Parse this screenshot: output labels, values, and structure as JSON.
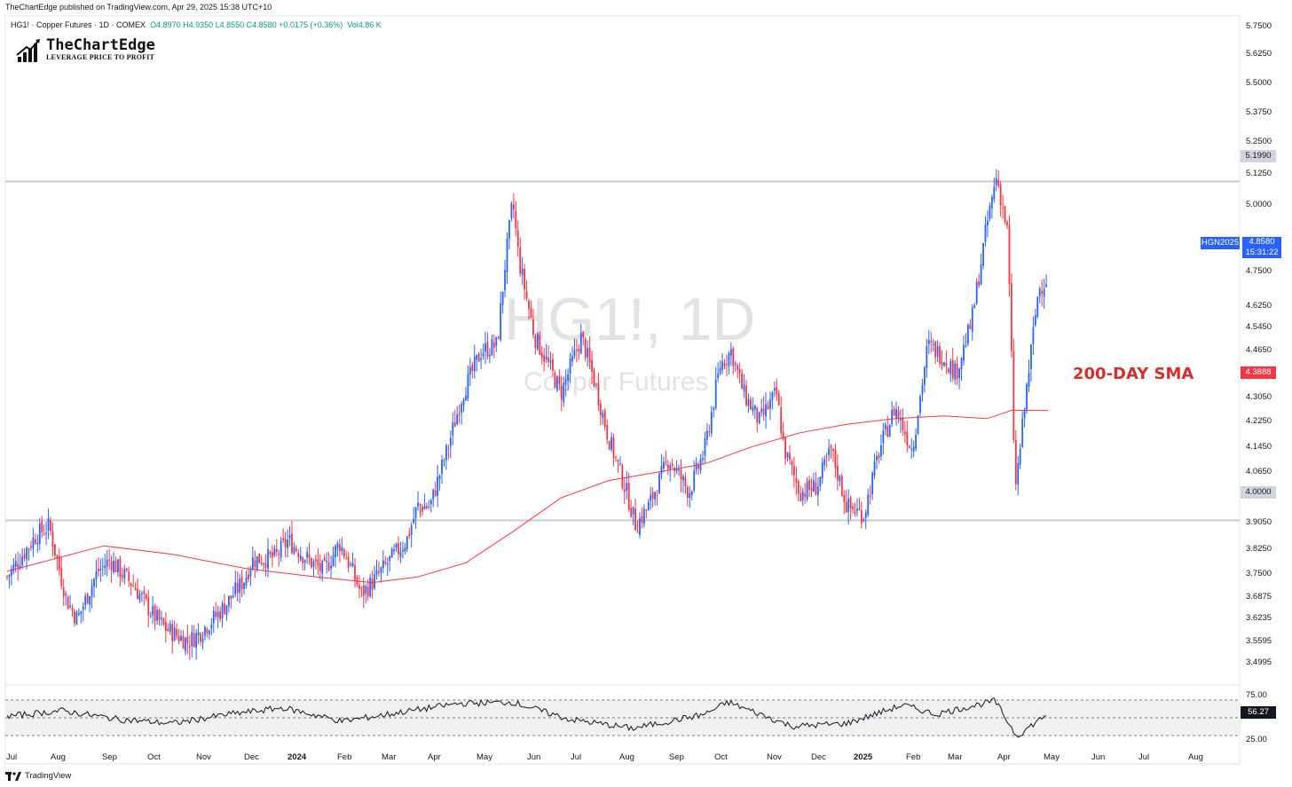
{
  "header": {
    "published": "TheChartEdge published on TradingView.com, Apr 29, 2025 15:38 UTC+10"
  },
  "legend": {
    "title": "HG1! · Copper Futures · 1D · COMEX",
    "ohlc": "O4.8970 H4.9350 L4.8550 C4.8580 +0.0175 (+0.36%)",
    "vol": "Vol4.86 K"
  },
  "brand": {
    "name": "TheChartEdge",
    "tagline": "LEVERAGE PRICE TO PROFIT"
  },
  "watermark": {
    "symbol": "HG1!, 1D",
    "name": "Copper Futures"
  },
  "annotation": {
    "sma_label": "200-DAY SMA"
  },
  "colors": {
    "up": "#2962ff",
    "down": "#f23645",
    "sma": "#f23645",
    "hline": "#c8cacf"
  },
  "y_axis_labels": [
    "5.7500",
    "5.6250",
    "5.5000",
    "5.3750",
    "5.2500",
    "5.1250",
    "5.0000",
    "4.7500",
    "4.6250",
    "4.5450",
    "4.4650",
    "4.3050",
    "4.2250",
    "4.1450",
    "4.0650",
    "3.9050",
    "3.8250",
    "3.7500",
    "3.6875",
    "3.6235",
    "3.5595",
    "3.4995"
  ],
  "price_tags": {
    "resistance": "5.1990",
    "support": "4.0000",
    "symbol": "HGN2025",
    "last": "4.8580",
    "countdown": "15:31:22",
    "sma": "4.3888"
  },
  "rsi": {
    "labels": [
      "75.00",
      "25.00"
    ],
    "value": "56.27"
  },
  "x_axis_labels": [
    {
      "t": "Jul",
      "bold": false
    },
    {
      "t": "Aug",
      "bold": false
    },
    {
      "t": "Sep",
      "bold": false
    },
    {
      "t": "Oct",
      "bold": false
    },
    {
      "t": "Nov",
      "bold": false
    },
    {
      "t": "Dec",
      "bold": false
    },
    {
      "t": "2024",
      "bold": true
    },
    {
      "t": "Feb",
      "bold": false
    },
    {
      "t": "Mar",
      "bold": false
    },
    {
      "t": "Apr",
      "bold": false
    },
    {
      "t": "May",
      "bold": false
    },
    {
      "t": "Jun",
      "bold": false
    },
    {
      "t": "Jul",
      "bold": false
    },
    {
      "t": "Aug",
      "bold": false
    },
    {
      "t": "Sep",
      "bold": false
    },
    {
      "t": "Oct",
      "bold": false
    },
    {
      "t": "Nov",
      "bold": false
    },
    {
      "t": "Dec",
      "bold": false
    },
    {
      "t": "2025",
      "bold": true
    },
    {
      "t": "Feb",
      "bold": false
    },
    {
      "t": "Mar",
      "bold": false
    },
    {
      "t": "Apr",
      "bold": false
    },
    {
      "t": "May",
      "bold": false
    },
    {
      "t": "Jun",
      "bold": false
    },
    {
      "t": "Jul",
      "bold": false
    },
    {
      "t": "Aug",
      "bold": false
    }
  ],
  "footer": {
    "brand": "TradingView"
  },
  "chart_data": {
    "type": "candlestick-line",
    "ylim": [
      3.45,
      5.78
    ],
    "horizontal_levels": [
      5.199,
      4.0
    ],
    "price_path": [
      [
        "2023-07-01",
        3.8
      ],
      [
        "2023-07-20",
        3.95
      ],
      [
        "2023-07-28",
        3.98
      ],
      [
        "2023-08-08",
        3.72
      ],
      [
        "2023-08-15",
        3.65
      ],
      [
        "2023-08-28",
        3.82
      ],
      [
        "2023-09-05",
        3.86
      ],
      [
        "2023-09-20",
        3.77
      ],
      [
        "2023-10-02",
        3.67
      ],
      [
        "2023-10-10",
        3.62
      ],
      [
        "2023-10-25",
        3.57
      ],
      [
        "2023-11-01",
        3.6
      ],
      [
        "2023-11-15",
        3.68
      ],
      [
        "2023-11-30",
        3.79
      ],
      [
        "2023-12-05",
        3.86
      ],
      [
        "2023-12-20",
        3.87
      ],
      [
        "2023-12-28",
        3.93
      ],
      [
        "2024-01-10",
        3.86
      ],
      [
        "2024-01-20",
        3.82
      ],
      [
        "2024-01-30",
        3.92
      ],
      [
        "2024-02-05",
        3.85
      ],
      [
        "2024-02-13",
        3.74
      ],
      [
        "2024-02-20",
        3.78
      ],
      [
        "2024-03-01",
        3.85
      ],
      [
        "2024-03-13",
        3.93
      ],
      [
        "2024-03-20",
        4.05
      ],
      [
        "2024-03-28",
        4.05
      ],
      [
        "2024-04-08",
        4.25
      ],
      [
        "2024-04-18",
        4.45
      ],
      [
        "2024-04-30",
        4.6
      ],
      [
        "2024-05-10",
        4.62
      ],
      [
        "2024-05-15",
        4.9
      ],
      [
        "2024-05-20",
        5.13
      ],
      [
        "2024-05-24",
        4.92
      ],
      [
        "2024-06-03",
        4.65
      ],
      [
        "2024-06-12",
        4.55
      ],
      [
        "2024-06-20",
        4.45
      ],
      [
        "2024-07-03",
        4.65
      ],
      [
        "2024-07-12",
        4.48
      ],
      [
        "2024-07-20",
        4.3
      ],
      [
        "2024-08-01",
        4.1
      ],
      [
        "2024-08-07",
        3.98
      ],
      [
        "2024-08-15",
        4.05
      ],
      [
        "2024-08-28",
        4.22
      ],
      [
        "2024-09-10",
        4.1
      ],
      [
        "2024-09-20",
        4.25
      ],
      [
        "2024-09-30",
        4.55
      ],
      [
        "2024-10-07",
        4.6
      ],
      [
        "2024-10-15",
        4.45
      ],
      [
        "2024-10-25",
        4.35
      ],
      [
        "2024-11-05",
        4.45
      ],
      [
        "2024-11-10",
        4.25
      ],
      [
        "2024-11-20",
        4.1
      ],
      [
        "2024-12-01",
        4.12
      ],
      [
        "2024-12-10",
        4.25
      ],
      [
        "2024-12-20",
        4.05
      ],
      [
        "2024-12-31",
        4.02
      ],
      [
        "2025-01-10",
        4.25
      ],
      [
        "2025-01-20",
        4.4
      ],
      [
        "2025-01-31",
        4.25
      ],
      [
        "2025-02-10",
        4.62
      ],
      [
        "2025-02-20",
        4.58
      ],
      [
        "2025-02-28",
        4.52
      ],
      [
        "2025-03-10",
        4.7
      ],
      [
        "2025-03-20",
        5.05
      ],
      [
        "2025-03-26",
        5.22
      ],
      [
        "2025-04-02",
        5.02
      ],
      [
        "2025-04-04",
        4.7
      ],
      [
        "2025-04-07",
        4.1
      ],
      [
        "2025-04-09",
        4.2
      ],
      [
        "2025-04-15",
        4.5
      ],
      [
        "2025-04-22",
        4.82
      ],
      [
        "2025-04-28",
        4.858
      ]
    ],
    "sma200_path": [
      [
        "2023-07-01",
        3.82
      ],
      [
        "2023-09-01",
        3.91
      ],
      [
        "2023-10-15",
        3.88
      ],
      [
        "2023-12-01",
        3.83
      ],
      [
        "2024-01-15",
        3.8
      ],
      [
        "2024-02-20",
        3.78
      ],
      [
        "2024-03-20",
        3.8
      ],
      [
        "2024-04-20",
        3.85
      ],
      [
        "2024-05-20",
        3.96
      ],
      [
        "2024-06-20",
        4.08
      ],
      [
        "2024-07-20",
        4.14
      ],
      [
        "2024-08-20",
        4.17
      ],
      [
        "2024-09-20",
        4.2
      ],
      [
        "2024-10-20",
        4.26
      ],
      [
        "2024-11-20",
        4.31
      ],
      [
        "2024-12-20",
        4.34
      ],
      [
        "2025-01-20",
        4.36
      ],
      [
        "2025-02-20",
        4.37
      ],
      [
        "2025-03-20",
        4.36
      ],
      [
        "2025-04-05",
        4.39
      ],
      [
        "2025-04-28",
        4.3888
      ]
    ],
    "rsi_path": [
      [
        "2023-07-01",
        52
      ],
      [
        "2023-08-05",
        60
      ],
      [
        "2023-09-10",
        48
      ],
      [
        "2023-10-15",
        42
      ],
      [
        "2023-11-20",
        55
      ],
      [
        "2023-12-25",
        64
      ],
      [
        "2024-02-01",
        45
      ],
      [
        "2024-03-10",
        58
      ],
      [
        "2024-04-15",
        70
      ],
      [
        "2024-05-20",
        72
      ],
      [
        "2024-06-25",
        48
      ],
      [
        "2024-08-05",
        35
      ],
      [
        "2024-09-20",
        55
      ],
      [
        "2024-10-05",
        72
      ],
      [
        "2024-11-15",
        38
      ],
      [
        "2024-12-20",
        42
      ],
      [
        "2025-01-25",
        68
      ],
      [
        "2025-02-15",
        55
      ],
      [
        "2025-03-25",
        74
      ],
      [
        "2025-04-08",
        24
      ],
      [
        "2025-04-28",
        56.27
      ]
    ]
  }
}
